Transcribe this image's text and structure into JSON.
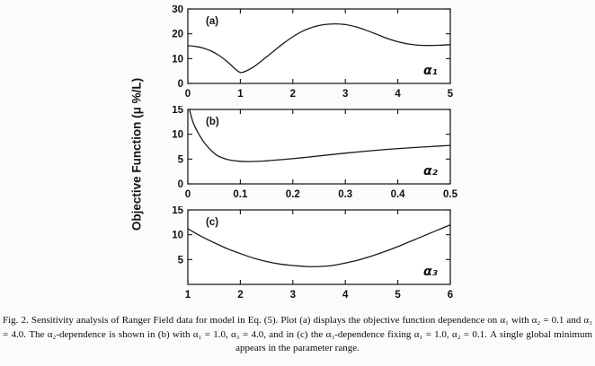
{
  "figure": {
    "y_axis_label": "Objective Function (μ %/L)",
    "caption": "Fig. 2. Sensitivity analysis of Ranger Field data for model in Eq. (5). Plot (a) displays the objective function dependence on α₁ with α₂ = 0.1 and α₃ = 4.0. The α₂-dependence is shown in (b) with α₁ = 1.0, α₃ = 4.0, and in (c) the α₃-dependence fixing α₁ = 1.0, α₂ = 0.1. A single global minimum appears in the parameter range.",
    "line_color": "#1a1a1a",
    "axis_color": "#111111"
  },
  "chart_data": [
    {
      "type": "line",
      "panel_label": "(a)",
      "series_label": "α₁",
      "xlim": [
        0,
        5
      ],
      "ylim": [
        0,
        30
      ],
      "xtick_values": [
        0,
        1,
        2,
        3,
        4,
        5
      ],
      "xticks": [
        "0",
        "1",
        "2",
        "3",
        "4",
        "5"
      ],
      "ytick_values": [
        0,
        10,
        20,
        30
      ],
      "yticks": [
        "0",
        "10",
        "20",
        "30"
      ],
      "x": [
        0,
        0.15,
        0.3,
        0.45,
        0.6,
        0.75,
        0.9,
        1.0,
        1.1,
        1.25,
        1.4,
        1.6,
        1.8,
        2.0,
        2.2,
        2.4,
        2.6,
        2.8,
        3.0,
        3.2,
        3.4,
        3.6,
        3.8,
        4.0,
        4.2,
        4.4,
        4.6,
        4.8,
        5.0
      ],
      "y": [
        15.2,
        14.9,
        14.2,
        13.0,
        11.2,
        8.8,
        5.9,
        4.4,
        4.9,
        6.6,
        9.0,
        12.4,
        15.8,
        18.8,
        21.2,
        22.8,
        23.7,
        24.0,
        23.7,
        22.8,
        21.4,
        19.8,
        18.1,
        16.8,
        15.9,
        15.4,
        15.3,
        15.4,
        15.6
      ]
    },
    {
      "type": "line",
      "panel_label": "(b)",
      "series_label": "α₂",
      "xlim": [
        0,
        0.5
      ],
      "ylim": [
        0,
        15
      ],
      "xtick_values": [
        0,
        0.1,
        0.2,
        0.3,
        0.4,
        0.5
      ],
      "xticks": [
        "0",
        "0.1",
        "0.2",
        "0.3",
        "0.4",
        "0.5"
      ],
      "ytick_values": [
        0,
        5,
        10,
        15
      ],
      "yticks": [
        "0",
        "5",
        "10",
        "15"
      ],
      "x": [
        0.003,
        0.01,
        0.02,
        0.03,
        0.04,
        0.05,
        0.06,
        0.08,
        0.1,
        0.12,
        0.15,
        0.18,
        0.22,
        0.26,
        0.3,
        0.34,
        0.38,
        0.42,
        0.46,
        0.5
      ],
      "y": [
        15.0,
        12.4,
        10.2,
        8.5,
        7.2,
        6.2,
        5.5,
        4.8,
        4.55,
        4.5,
        4.65,
        4.9,
        5.3,
        5.75,
        6.2,
        6.6,
        6.95,
        7.25,
        7.5,
        7.75
      ]
    },
    {
      "type": "line",
      "panel_label": "(c)",
      "series_label": "α₃",
      "xlim": [
        1,
        6
      ],
      "ylim": [
        0,
        15
      ],
      "xtick_values": [
        1,
        2,
        3,
        4,
        5,
        6
      ],
      "xticks": [
        "1",
        "2",
        "3",
        "4",
        "5",
        "6"
      ],
      "ytick_values": [
        5,
        10,
        15
      ],
      "yticks": [
        "5",
        "10",
        "15"
      ],
      "x": [
        1.0,
        1.25,
        1.5,
        1.75,
        2.0,
        2.25,
        2.5,
        2.75,
        3.0,
        3.25,
        3.5,
        3.75,
        4.0,
        4.25,
        4.5,
        4.75,
        5.0,
        5.25,
        5.5,
        5.75,
        6.0
      ],
      "y": [
        11.2,
        9.7,
        8.4,
        7.2,
        6.2,
        5.3,
        4.6,
        4.1,
        3.8,
        3.6,
        3.6,
        3.8,
        4.3,
        4.9,
        5.7,
        6.6,
        7.6,
        8.7,
        9.8,
        10.9,
        12.0
      ]
    }
  ]
}
